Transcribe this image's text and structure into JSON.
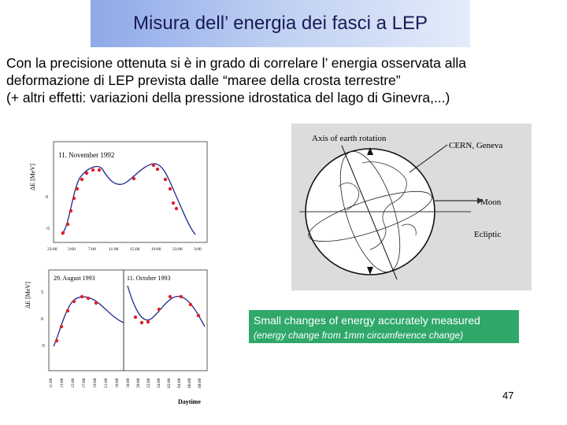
{
  "slide": {
    "title": "Misura dell’ energia dei fasci a LEP",
    "lines": [
      "Con la precisione ottenuta si è in grado di correlare l’ energia osservata alla",
      "deformazione di LEP prevista dalle “maree della crosta terrestre”",
      "(+ altri effetti: variazioni della pressione idrostatica del lago di Ginevra,...)"
    ],
    "caption_main": "Small changes of energy accurately measured",
    "caption_sub": "(energy change from 1mm circumference change)",
    "page_number": "47"
  },
  "colors": {
    "title_bg": "#a8bef0",
    "caption_bg": "#2fa86a",
    "data_points": "#e0202a",
    "curve": "#1a2a8a"
  },
  "top_plot": {
    "ylabel": "ΔE [MeV]",
    "label": "11. November 1992",
    "yticks": [
      "0",
      "-5"
    ],
    "xticks": [
      "23:00",
      "3:00",
      "7:00",
      "11:00",
      "15:00",
      "19:00",
      "23:00",
      "3:00"
    ]
  },
  "bottom_plot": {
    "ylabel": "ΔE [MeV]",
    "label_left": "29. August 1993",
    "label_right": "11. October 1993",
    "yticks": [
      "5",
      "0",
      "-5"
    ],
    "xticks": [
      "11:00",
      "13:00",
      "15:00",
      "17:00",
      "19:00",
      "21:00",
      "16:00",
      "18:00",
      "20:00",
      "22:00",
      "24:00",
      "02:00",
      "04:00",
      "06:00",
      "08:00"
    ],
    "xlabel": "Daytime"
  },
  "earth_diagram": {
    "axis_label": "Axis of earth rotation",
    "cern_label": "CERN, Geneva",
    "moon_label": "Moon",
    "ecliptic_label": "Ecliptic"
  }
}
